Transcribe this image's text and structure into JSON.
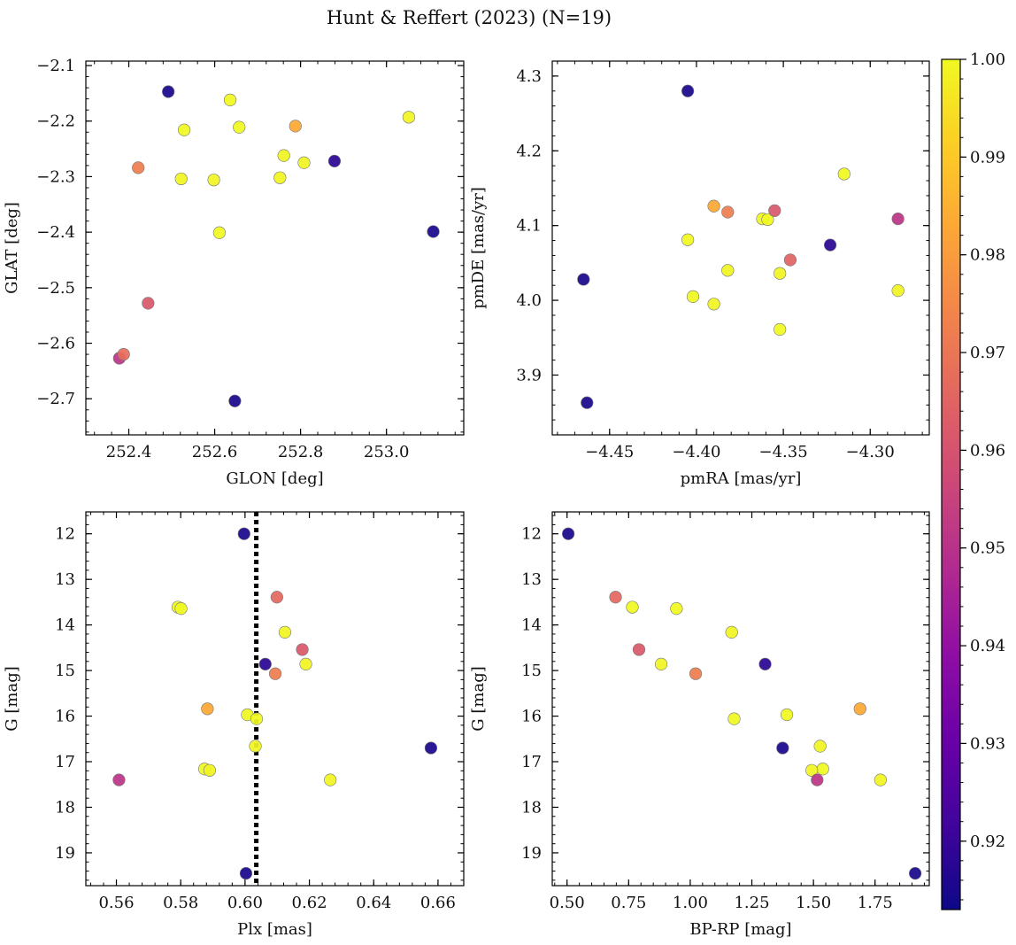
{
  "title": "Hunt & Reffert (2023) (N=19)",
  "colorbar": {
    "colormap": "plasma",
    "range": [
      0.913,
      1.0
    ],
    "ticks": [
      0.92,
      0.93,
      0.94,
      0.95,
      0.96,
      0.97,
      0.98,
      0.99,
      1.0
    ],
    "tick_labels": [
      "0.92",
      "0.93",
      "0.94",
      "0.95",
      "0.96",
      "0.97",
      "0.98",
      "0.99",
      "1.00"
    ]
  },
  "chart_data": [
    {
      "type": "scatter",
      "name": "glon-glat",
      "xlabel": "GLON [deg]",
      "ylabel": "GLAT [deg]",
      "xlim": [
        252.3,
        253.18
      ],
      "ylim": [
        -2.765,
        -2.092
      ],
      "xticks": [
        252.4,
        252.6,
        252.8,
        253.0
      ],
      "xtick_labels": [
        "252.4",
        "252.6",
        "252.8",
        "253.0"
      ],
      "yticks": [
        -2.1,
        -2.2,
        -2.3,
        -2.4,
        -2.5,
        -2.6,
        -2.7
      ],
      "ytick_labels": [
        "−2.1",
        "−2.2",
        "−2.3",
        "−2.4",
        "−2.5",
        "−2.6",
        "−2.7"
      ],
      "x": [
        252.492,
        252.636,
        253.052,
        252.529,
        252.657,
        252.788,
        252.761,
        252.808,
        252.879,
        252.422,
        252.522,
        252.598,
        252.752,
        252.611,
        253.109,
        252.445,
        252.378,
        252.388,
        252.647
      ],
      "y": [
        -2.147,
        -2.162,
        -2.193,
        -2.216,
        -2.211,
        -2.209,
        -2.262,
        -2.275,
        -2.272,
        -2.284,
        -2.304,
        -2.306,
        -2.302,
        -2.401,
        -2.399,
        -2.528,
        -2.627,
        -2.62,
        -2.704
      ],
      "c": [
        0.915,
        1.0,
        0.999,
        1.0,
        1.0,
        0.983,
        0.999,
        0.999,
        0.918,
        0.972,
        0.999,
        0.999,
        0.999,
        1.0,
        0.915,
        0.962,
        0.951,
        0.968,
        0.915
      ]
    },
    {
      "type": "scatter",
      "name": "pmra-pmde",
      "xlabel": "pmRA [mas/yr]",
      "ylabel": "pmDE [mas/yr]",
      "xlim": [
        -4.483,
        -4.266
      ],
      "ylim": [
        3.82,
        4.32
      ],
      "xticks": [
        -4.45,
        -4.4,
        -4.35,
        -4.3
      ],
      "xtick_labels": [
        "−4.45",
        "−4.40",
        "−4.35",
        "−4.30"
      ],
      "yticks": [
        3.9,
        4.0,
        4.1,
        4.2,
        4.3
      ],
      "ytick_labels": [
        "3.9",
        "4.0",
        "4.1",
        "4.2",
        "4.3"
      ],
      "x": [
        -4.405,
        -4.315,
        -4.39,
        -4.382,
        -4.362,
        -4.359,
        -4.355,
        -4.405,
        -4.284,
        -4.323,
        -4.382,
        -4.346,
        -4.352,
        -4.465,
        -4.402,
        -4.39,
        -4.284,
        -4.352,
        -4.463
      ],
      "y": [
        4.28,
        4.169,
        4.126,
        4.118,
        4.109,
        4.108,
        4.12,
        4.081,
        4.109,
        4.074,
        4.04,
        4.054,
        4.036,
        4.028,
        4.005,
        3.995,
        4.013,
        3.961,
        3.863
      ],
      "c": [
        0.915,
        1.0,
        0.983,
        0.972,
        1.0,
        1.0,
        0.962,
        1.0,
        0.951,
        0.918,
        0.999,
        0.965,
        0.999,
        0.915,
        1.0,
        0.999,
        0.999,
        1.0,
        0.915
      ]
    },
    {
      "type": "scatter",
      "name": "plx-g",
      "xlabel": "Plx [mas]",
      "ylabel": "G [mag]",
      "xlim": [
        0.5505,
        0.668
      ],
      "ylim": [
        19.72,
        11.52
      ],
      "xticks": [
        0.56,
        0.58,
        0.6,
        0.62,
        0.64,
        0.66
      ],
      "xtick_labels": [
        "0.56",
        "0.58",
        "0.60",
        "0.62",
        "0.64",
        "0.66"
      ],
      "yticks": [
        12,
        13,
        14,
        15,
        16,
        17,
        18,
        19
      ],
      "ytick_labels": [
        "12",
        "13",
        "14",
        "15",
        "16",
        "17",
        "18",
        "19"
      ],
      "vline": 0.6035,
      "x": [
        0.5997,
        0.6099,
        0.5791,
        0.5801,
        0.6124,
        0.6178,
        0.6189,
        0.6063,
        0.6094,
        0.5883,
        0.6007,
        0.6036,
        0.6032,
        0.6578,
        0.5874,
        0.589,
        0.5608,
        0.6265,
        0.6003
      ],
      "y": [
        12.0,
        13.39,
        13.61,
        13.64,
        14.16,
        14.54,
        14.86,
        14.86,
        15.07,
        15.84,
        15.97,
        16.06,
        16.66,
        16.7,
        17.16,
        17.19,
        17.4,
        17.4,
        19.45
      ],
      "c": [
        0.915,
        0.966,
        1.0,
        1.0,
        0.999,
        0.962,
        0.999,
        0.918,
        0.972,
        0.983,
        1.0,
        1.0,
        0.999,
        0.915,
        1.0,
        0.999,
        0.951,
        0.999,
        0.915
      ]
    },
    {
      "type": "scatter",
      "name": "bprp-g",
      "xlabel": "BP-RP [mag]",
      "ylabel": "G [mag]",
      "xlim": [
        0.44,
        1.97
      ],
      "ylim": [
        19.72,
        11.52
      ],
      "xticks": [
        0.5,
        0.75,
        1.0,
        1.25,
        1.5,
        1.75
      ],
      "xtick_labels": [
        "0.50",
        "0.75",
        "1.00",
        "1.25",
        "1.50",
        "1.75"
      ],
      "yticks": [
        12,
        13,
        14,
        15,
        16,
        17,
        18,
        19
      ],
      "ytick_labels": [
        "12",
        "13",
        "14",
        "15",
        "16",
        "17",
        "18",
        "19"
      ],
      "x": [
        0.505,
        0.697,
        0.765,
        0.944,
        1.168,
        0.792,
        0.882,
        1.304,
        1.022,
        1.689,
        1.392,
        1.178,
        1.527,
        1.375,
        1.538,
        1.493,
        1.515,
        1.772,
        1.913
      ],
      "y": [
        12.0,
        13.39,
        13.61,
        13.64,
        14.16,
        14.54,
        14.86,
        14.86,
        15.07,
        15.84,
        15.97,
        16.06,
        16.66,
        16.7,
        17.16,
        17.19,
        17.4,
        17.4,
        19.45
      ],
      "c": [
        0.915,
        0.966,
        1.0,
        1.0,
        0.999,
        0.962,
        0.999,
        0.918,
        0.972,
        0.983,
        1.0,
        1.0,
        0.999,
        0.915,
        1.0,
        0.999,
        0.951,
        0.999,
        0.915
      ]
    }
  ]
}
